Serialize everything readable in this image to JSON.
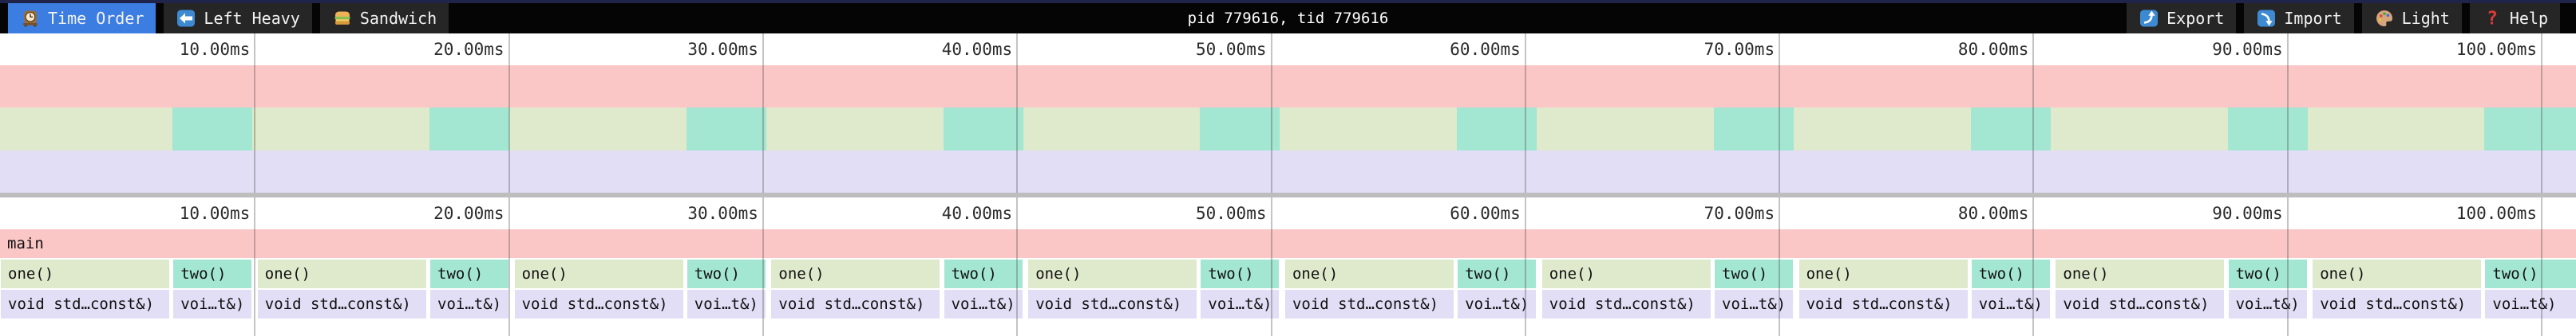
{
  "toolbar": {
    "tabs": [
      {
        "label": "Time Order",
        "icon": "mantel-clock",
        "active": true
      },
      {
        "label": "Left Heavy",
        "icon": "left-arrow",
        "active": false
      },
      {
        "label": "Sandwich",
        "icon": "sandwich",
        "active": false
      }
    ],
    "title": "pid 779616, tid 779616",
    "actions": [
      {
        "label": "Export",
        "icon": "arrow-curving-up"
      },
      {
        "label": "Import",
        "icon": "arrow-curving-down"
      },
      {
        "label": "Light",
        "icon": "palette"
      },
      {
        "label": "Help",
        "icon": "question-mark"
      }
    ]
  },
  "timeline": {
    "tick_labels": [
      "10.00ms",
      "20.00ms",
      "30.00ms",
      "40.00ms",
      "50.00ms",
      "60.00ms",
      "70.00ms",
      "80.00ms",
      "90.00ms",
      "100.00ms"
    ],
    "tick_interval_ms": 10,
    "tick_pct": 9.8637,
    "visible_range_ms": [
      0,
      101.4
    ]
  },
  "flame": {
    "labels": {
      "root": "main",
      "one": "one()",
      "two": "two()",
      "one_child": "void std…const&)",
      "two_child": "voi…t&)"
    },
    "iteration_count": 10,
    "last_two_cut_off": true,
    "geometry_pct": {
      "pair_pitch": 9.9721,
      "one_width": 6.6006,
      "two_offset": 6.7,
      "two_width": 3.099
    },
    "approx_ms": {
      "pair_pitch": 10.11,
      "one_duration": 6.69,
      "two_duration": 3.14
    }
  },
  "colors": {
    "accent_tab": "#3c7de2",
    "topbar_trim": "#20244a",
    "frame_main": "#fbc6c6",
    "frame_one": "#dfe9cc",
    "frame_two": "#a3e6d2",
    "frame_child": "#e1def6",
    "divider": "#bdbdbd"
  }
}
